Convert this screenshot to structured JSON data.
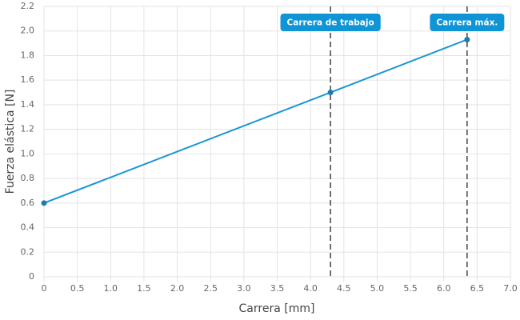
{
  "chart_data": {
    "type": "line",
    "x_label": "Carrera [mm]",
    "y_label": "Fuerza elástica [N]",
    "x": [
      0,
      4.3,
      6.35
    ],
    "values": [
      0.6,
      1.5,
      1.93
    ],
    "color": "#1a96d4",
    "xlim": [
      0,
      7
    ],
    "xticks": [
      0,
      0.5,
      {
        "value": 1,
        "label": "1.0"
      },
      1.5,
      {
        "value": 2,
        "label": "2.0"
      },
      2.5,
      {
        "value": 3,
        "label": "3.0"
      },
      3.5,
      {
        "value": 4,
        "label": "4.0"
      },
      4.5,
      {
        "value": 5,
        "label": "5.0"
      },
      5.5,
      {
        "value": 6,
        "label": "6.0"
      },
      6.5,
      {
        "value": 7,
        "label": "7.0"
      }
    ],
    "ylim": [
      0,
      2.2
    ],
    "yticks": [
      0,
      0.2,
      0.4,
      0.6,
      0.8,
      {
        "value": 1,
        "label": "1.0"
      },
      1.2,
      1.4,
      1.6,
      1.8,
      {
        "value": 2,
        "label": "2.0"
      },
      2.2
    ],
    "grid": true,
    "annotations": [
      {
        "x": 4.3,
        "label": "Carrera de trabajo"
      },
      {
        "x": 6.35,
        "label": "Carrera máx."
      }
    ]
  }
}
